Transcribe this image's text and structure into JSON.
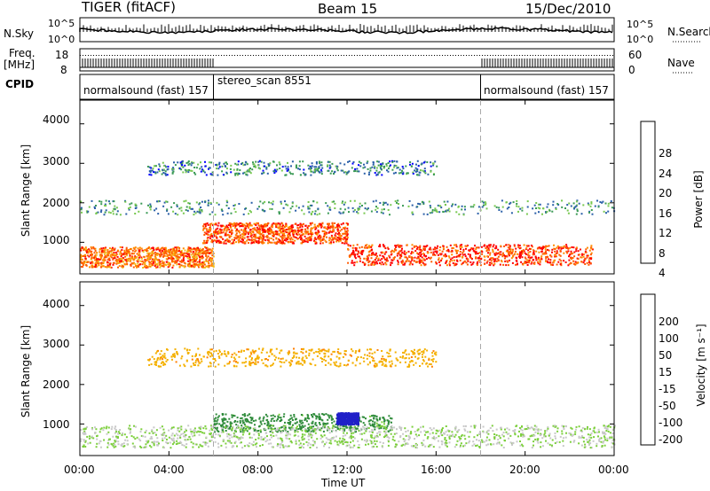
{
  "header": {
    "radar": "TIGER (fitACF)",
    "beam": "Beam 15",
    "date": "15/Dec/2010"
  },
  "noise_panel": {
    "left_label": "N.Sky",
    "right_label": "N.Search",
    "left_ticks": [
      "10^5",
      "10^0"
    ],
    "right_ticks": [
      "10^5",
      "10^0"
    ]
  },
  "freq_panel": {
    "left_label_1": "Freq.",
    "left_label_2": "[MHz]",
    "left_ticks": [
      "18",
      "8"
    ],
    "right_ticks": [
      "60",
      "0"
    ],
    "right_label": "Nave"
  },
  "cpid_panel": {
    "label": "CPID",
    "segments": [
      {
        "name": "normalsound (fast) 157",
        "start_hour": 0,
        "end_hour": 6
      },
      {
        "name": "stereo_scan 8551",
        "start_hour": 6,
        "end_hour": 18
      },
      {
        "name": "normalsound (fast) 157",
        "start_hour": 18,
        "end_hour": 24
      }
    ]
  },
  "axes": {
    "y_label": "Slant Range [km]",
    "y_ticks": [
      "1000",
      "2000",
      "3000",
      "4000"
    ],
    "x_label": "Time UT",
    "x_ticks": [
      "00:00",
      "04:00",
      "08:00",
      "12:00",
      "16:00",
      "20:00",
      "00:00"
    ]
  },
  "power_colorbar": {
    "label": "Power [dB]",
    "ticks": [
      "4",
      "8",
      "12",
      "16",
      "20",
      "24",
      "28"
    ],
    "colors": [
      "#0000ff",
      "#2a5fa8",
      "#3a9a55",
      "#78c850",
      "#f0c020",
      "#ff8c00",
      "#ff5a00",
      "#ff0000"
    ]
  },
  "velocity_colorbar": {
    "label": "Velocity [m s⁻¹]",
    "ticks": [
      "200",
      "100",
      "50",
      "15",
      "-15",
      "-50",
      "-100",
      "-200"
    ],
    "colors": [
      "#2020c8",
      "#1f5a8a",
      "#2e8b3a",
      "#7ccf3c",
      "#c8c8c8",
      "#f4b000",
      "#ff7f00",
      "#ff4500",
      "#ff0000"
    ]
  },
  "chart_data": {
    "type": "heatmap",
    "x_range_hours": [
      0,
      24
    ],
    "y_range_km": [
      200,
      4600
    ],
    "power_bands": [
      {
        "center_km": 640,
        "t_start": 0,
        "t_end": 6,
        "power_db": 24
      },
      {
        "center_km": 1250,
        "t_start": 5.5,
        "t_end": 12,
        "power_db": 26
      },
      {
        "center_km": 700,
        "t_start": 12,
        "t_end": 23,
        "power_db": 28
      },
      {
        "center_km": 1900,
        "t_start": 0,
        "t_end": 24,
        "power_db": 10
      },
      {
        "center_km": 2900,
        "t_start": 3,
        "t_end": 16,
        "power_db": 8
      }
    ],
    "velocity_regions": [
      {
        "center_km": 1050,
        "t_start": 6,
        "t_end": 14,
        "velocity_ms": 50
      },
      {
        "center_km": 1150,
        "t_start": 11.5,
        "t_end": 12.5,
        "velocity_ms": 200
      },
      {
        "center_km": 700,
        "t_start": 0,
        "t_end": 24,
        "velocity_ms": 0
      },
      {
        "center_km": 2700,
        "t_start": 3,
        "t_end": 16,
        "velocity_ms": -60
      }
    ],
    "grid": false
  }
}
